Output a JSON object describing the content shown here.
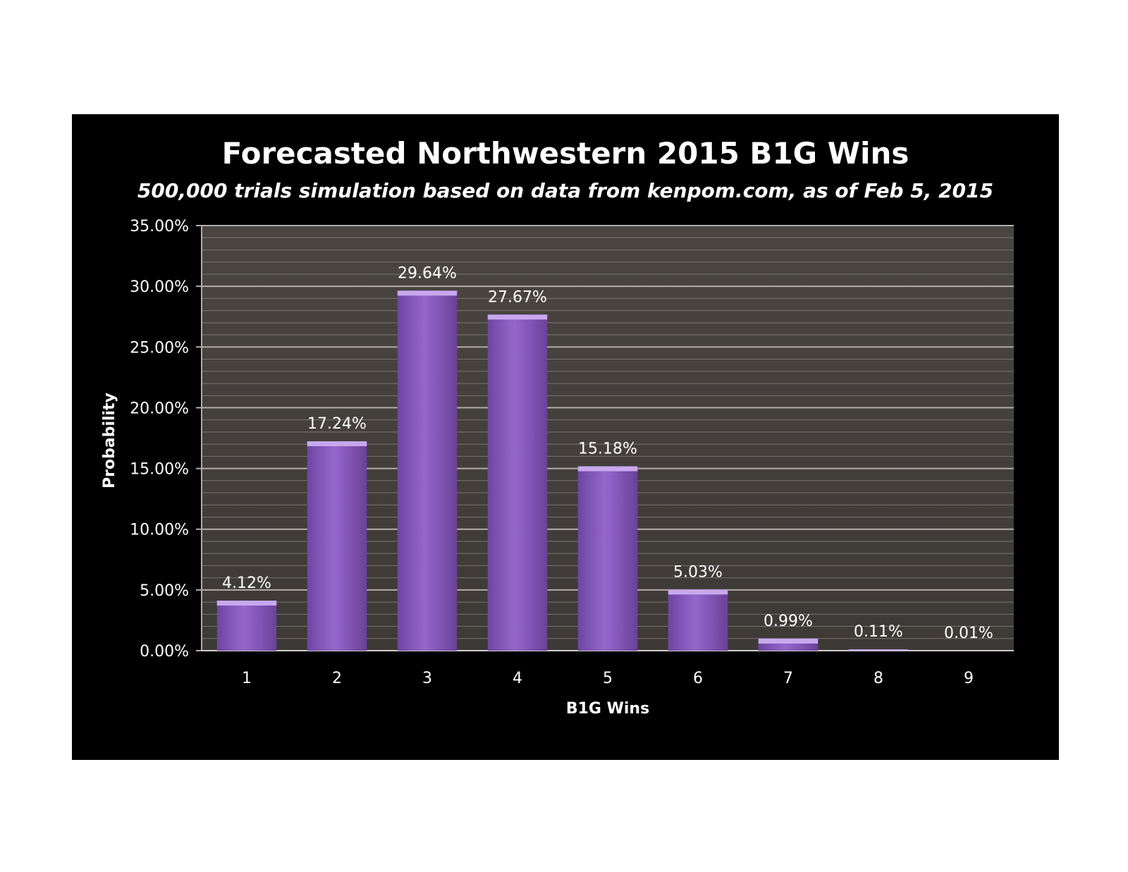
{
  "colors": {
    "background": "#000000",
    "plot_area": "#48433f",
    "bar": "#8a5cc0",
    "bar_top": "#c7a8ee",
    "text": "#ffffff"
  },
  "chart_data": {
    "type": "bar",
    "title": "Forecasted Northwestern 2015 B1G Wins",
    "subtitle": "500,000 trials simulation based on data from kenpom.com, as of Feb 5, 2015",
    "xlabel": "B1G Wins",
    "ylabel": "Probability",
    "categories": [
      "1",
      "2",
      "3",
      "4",
      "5",
      "6",
      "7",
      "8",
      "9"
    ],
    "values": [
      4.12,
      17.24,
      29.64,
      27.67,
      15.18,
      5.03,
      0.99,
      0.11,
      0.01
    ],
    "data_labels": [
      "4.12%",
      "17.24%",
      "29.64%",
      "27.67%",
      "15.18%",
      "5.03%",
      "0.99%",
      "0.11%",
      "0.01%"
    ],
    "y_ticks": [
      0,
      5,
      10,
      15,
      20,
      25,
      30,
      35
    ],
    "y_tick_labels": [
      "0.00%",
      "5.00%",
      "10.00%",
      "15.00%",
      "20.00%",
      "25.00%",
      "30.00%",
      "35.00%"
    ],
    "ylim": [
      0,
      35
    ],
    "grid": true,
    "legend": "none"
  }
}
